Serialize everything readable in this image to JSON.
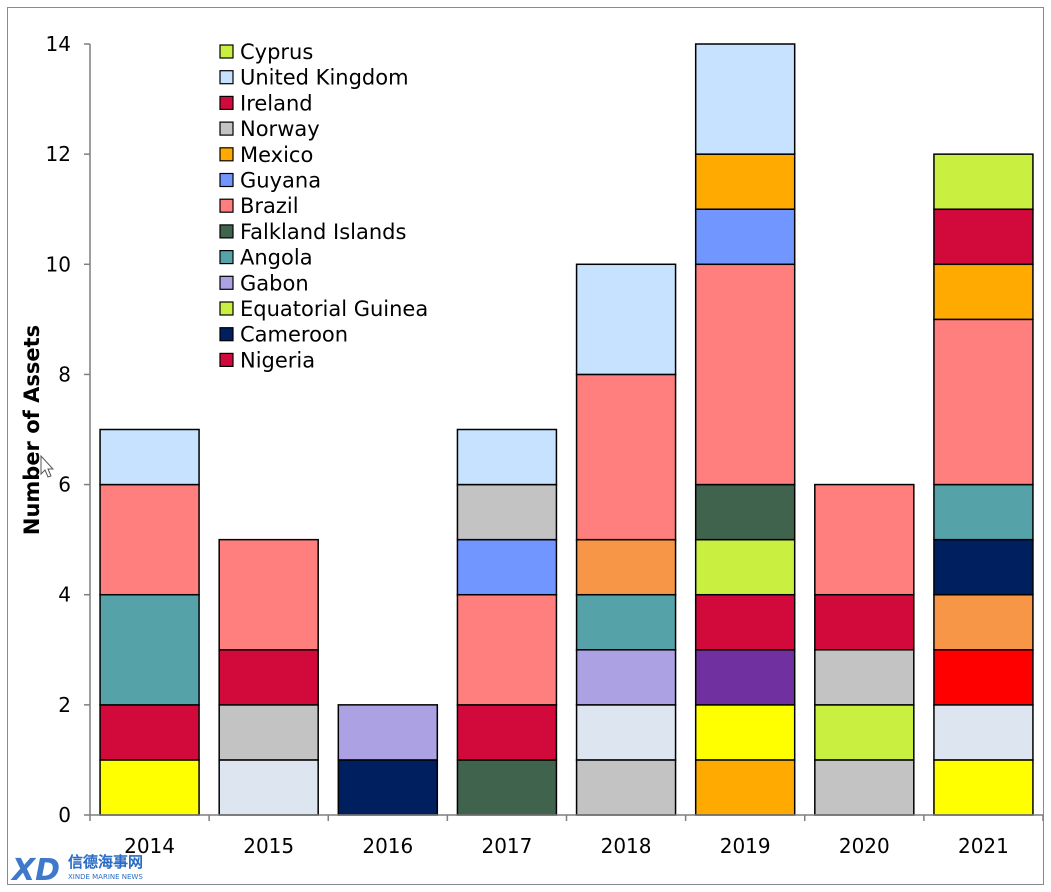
{
  "chart_data": {
    "type": "bar",
    "stacked": true,
    "title": "",
    "xlabel": "",
    "ylabel": "Number of Assets",
    "ylim": [
      0,
      14
    ],
    "yticks": [
      0,
      2,
      4,
      6,
      8,
      10,
      12,
      14
    ],
    "grid": false,
    "legend_position": "top-left (inside plot)",
    "categories": [
      "2014",
      "2015",
      "2016",
      "2017",
      "2018",
      "2019",
      "2020",
      "2021"
    ],
    "stack_segments": [
      [
        {
          "color": "#FFFF00",
          "value": 1
        },
        {
          "color": "#D20A3C",
          "value": 1
        },
        {
          "color": "#55A3A8",
          "value": 2
        },
        {
          "color": "#FF7F7F",
          "value": 2
        },
        {
          "color": "#C6E2FF",
          "value": 1
        }
      ],
      [
        {
          "color": "#DDE5F1",
          "value": 1
        },
        {
          "color": "#C3C3C3",
          "value": 1
        },
        {
          "color": "#D20A3C",
          "value": 1
        },
        {
          "color": "#FF7F7F",
          "value": 2
        }
      ],
      [
        {
          "color": "#001F5F",
          "value": 1
        },
        {
          "color": "#ABA1E3",
          "value": 1
        }
      ],
      [
        {
          "color": "#3F634D",
          "value": 1
        },
        {
          "color": "#D20A3C",
          "value": 1
        },
        {
          "color": "#FF7F7F",
          "value": 2
        },
        {
          "color": "#7196FF",
          "value": 1
        },
        {
          "color": "#C3C3C3",
          "value": 1
        },
        {
          "color": "#C6E2FF",
          "value": 1
        }
      ],
      [
        {
          "color": "#C3C3C3",
          "value": 1
        },
        {
          "color": "#DDE5F1",
          "value": 1
        },
        {
          "color": "#ABA1E3",
          "value": 1
        },
        {
          "color": "#55A3A8",
          "value": 1
        },
        {
          "color": "#F79646",
          "value": 1
        },
        {
          "color": "#FF7F7F",
          "value": 3
        },
        {
          "color": "#C6E2FF",
          "value": 2
        }
      ],
      [
        {
          "color": "#FFAA00",
          "value": 1
        },
        {
          "color": "#FFFF00",
          "value": 1
        },
        {
          "color": "#7030A0",
          "value": 1
        },
        {
          "color": "#D20A3C",
          "value": 1
        },
        {
          "color": "#C9F041",
          "value": 1
        },
        {
          "color": "#3F634D",
          "value": 1
        },
        {
          "color": "#FF7F7F",
          "value": 4
        },
        {
          "color": "#7196FF",
          "value": 1
        },
        {
          "color": "#FFAA00",
          "value": 1
        },
        {
          "color": "#C6E2FF",
          "value": 2
        }
      ],
      [
        {
          "color": "#C3C3C3",
          "value": 1
        },
        {
          "color": "#C9F041",
          "value": 1
        },
        {
          "color": "#C3C3C3",
          "value": 1
        },
        {
          "color": "#D20A3C",
          "value": 1
        },
        {
          "color": "#FF7F7F",
          "value": 2
        }
      ],
      [
        {
          "color": "#FFFF00",
          "value": 1
        },
        {
          "color": "#DDE5F1",
          "value": 1
        },
        {
          "color": "#FF0000",
          "value": 1
        },
        {
          "color": "#F79646",
          "value": 1
        },
        {
          "color": "#001F5F",
          "value": 1
        },
        {
          "color": "#55A3A8",
          "value": 1
        },
        {
          "color": "#FF7F7F",
          "value": 3
        },
        {
          "color": "#FFAA00",
          "value": 1
        },
        {
          "color": "#D20A3C",
          "value": 1
        },
        {
          "color": "#C9F041",
          "value": 1
        }
      ]
    ],
    "totals": [
      7,
      5,
      2,
      7,
      10,
      14,
      6,
      12
    ],
    "legend": [
      {
        "name": "Cyprus",
        "color": "#C9F041"
      },
      {
        "name": "United Kingdom",
        "color": "#C6E2FF"
      },
      {
        "name": "Ireland",
        "color": "#D20A3C"
      },
      {
        "name": "Norway",
        "color": "#C3C3C3"
      },
      {
        "name": "Mexico",
        "color": "#FFAA00"
      },
      {
        "name": "Guyana",
        "color": "#7196FF"
      },
      {
        "name": "Brazil",
        "color": "#FF7F7F"
      },
      {
        "name": "Falkland Islands",
        "color": "#3F634D"
      },
      {
        "name": "Angola",
        "color": "#55A3A8"
      },
      {
        "name": "Gabon",
        "color": "#ABA1E3"
      },
      {
        "name": "Equatorial Guinea",
        "color": "#C9F041"
      },
      {
        "name": "Cameroon",
        "color": "#001F5F"
      },
      {
        "name": "Nigeria",
        "color": "#D20A3C"
      }
    ]
  },
  "watermark": {
    "logo_text": "XD",
    "chinese_text": "信德海事网",
    "english_text": "XINDE MARINE NEWS"
  }
}
